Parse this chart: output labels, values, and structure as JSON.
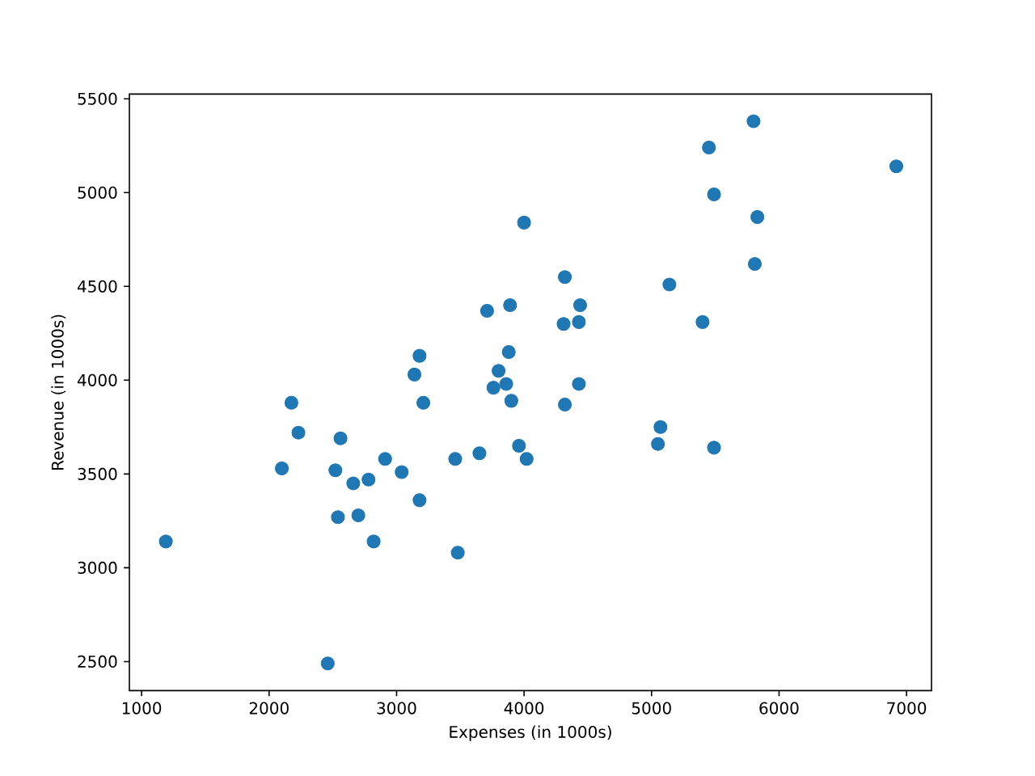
{
  "chart_data": {
    "type": "scatter",
    "xlabel": "Expenses (in 1000s)",
    "ylabel": "Revenue (in 1000s)",
    "x": [
      1190,
      2175,
      2230,
      2100,
      2560,
      2520,
      2540,
      2460,
      2660,
      2780,
      2700,
      2820,
      2910,
      3040,
      3180,
      3140,
      3180,
      3210,
      3460,
      3480,
      3650,
      3760,
      3800,
      3860,
      3900,
      3960,
      4020,
      3880,
      3710,
      3890,
      4000,
      5800,
      5450,
      6920,
      5490,
      5830,
      5810,
      5140,
      5400,
      4320,
      4440,
      4310,
      4430,
      4430,
      4320,
      5070,
      5050,
      5490
    ],
    "values": [
      3140,
      3880,
      3720,
      3530,
      3690,
      3520,
      3270,
      2490,
      3450,
      3470,
      3280,
      3140,
      3580,
      3510,
      3360,
      4030,
      4130,
      3880,
      3580,
      3080,
      3610,
      3960,
      4050,
      3980,
      3890,
      3650,
      3580,
      4150,
      4370,
      4400,
      4840,
      5380,
      5240,
      5140,
      4990,
      4870,
      4620,
      4510,
      4310,
      4550,
      4400,
      4300,
      4310,
      3980,
      3870,
      3750,
      3660,
      3640
    ],
    "color": "#1f77b4",
    "marker": "circle",
    "xlim": [
      904,
      7196
    ],
    "ylim": [
      2345,
      5525
    ],
    "xticks": [
      1000,
      2000,
      3000,
      4000,
      5000,
      6000,
      7000
    ],
    "yticks": [
      2500,
      3000,
      3500,
      4000,
      4500,
      5000,
      5500
    ]
  }
}
